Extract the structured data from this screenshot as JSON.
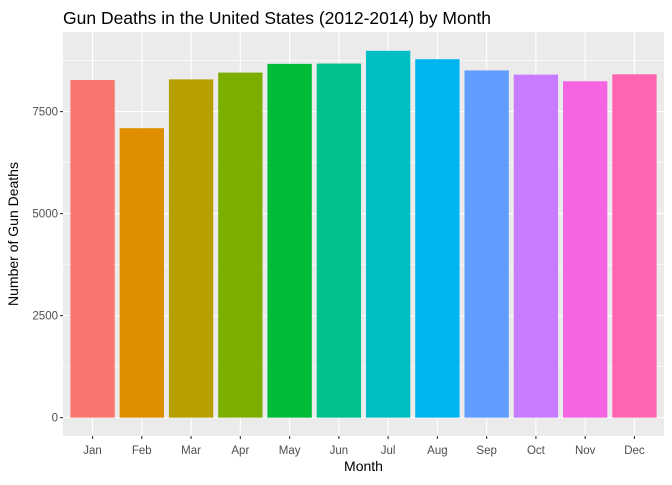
{
  "chart_data": {
    "type": "bar",
    "title": "Gun Deaths in the United States (2012-2014) by Month",
    "xlabel": "Month",
    "ylabel": "Number of Gun Deaths",
    "categories": [
      "Jan",
      "Feb",
      "Mar",
      "Apr",
      "May",
      "Jun",
      "Jul",
      "Aug",
      "Sep",
      "Oct",
      "Nov",
      "Dec"
    ],
    "values": [
      8273,
      7093,
      8289,
      8455,
      8669,
      8677,
      8989,
      8783,
      8508,
      8406,
      8243,
      8413
    ],
    "colors": [
      "#F8766D",
      "#DE8C00",
      "#B79F00",
      "#7CAE00",
      "#00BA38",
      "#00C08B",
      "#00BFC4",
      "#00B4F0",
      "#619CFF",
      "#C77CFF",
      "#F564E3",
      "#FF64B0"
    ],
    "yticks": [
      0,
      2500,
      5000,
      7500
    ],
    "ylim": [
      -450,
      9450
    ],
    "grid": true,
    "panel_background": "#EBEBEB",
    "grid_color": "#FFFFFF"
  }
}
